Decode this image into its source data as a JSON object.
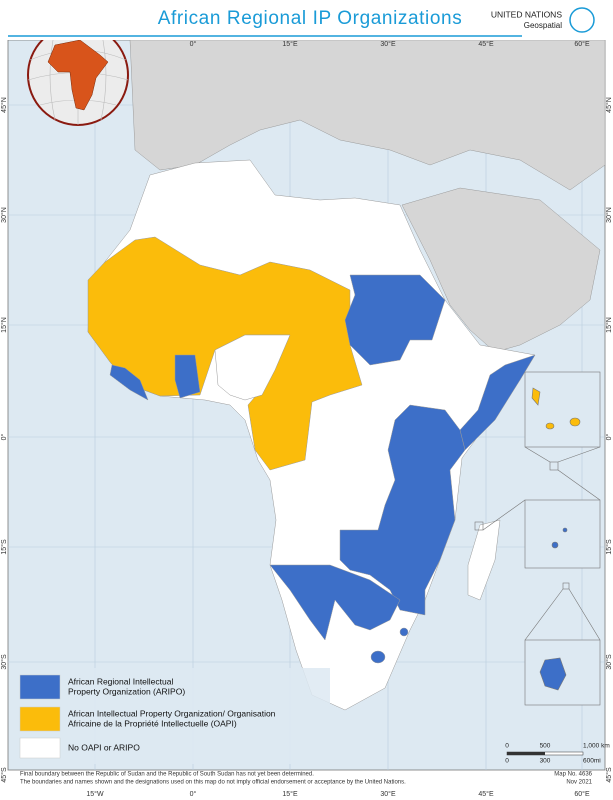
{
  "header": {
    "title": "African Regional IP Organizations",
    "org": "UNITED NATIONS",
    "unit": "Geospatial"
  },
  "graticule": {
    "top": [
      "0°",
      "15°E",
      "30°E",
      "45°E",
      "60°E"
    ],
    "bottom": [
      "15°W",
      "0°",
      "15°E",
      "30°E",
      "45°E",
      "60°E"
    ],
    "left": [
      "45°N",
      "30°N",
      "15°N",
      "0°",
      "15°S",
      "30°S",
      "45°S"
    ],
    "right": [
      "45°N",
      "30°N",
      "15°N",
      "0°",
      "15°S",
      "30°S",
      "45°S"
    ]
  },
  "legend": [
    {
      "lines": [
        "African Regional Intellectual",
        "Property Organization (ARIPO)"
      ],
      "color": "#3d6fc8"
    },
    {
      "lines": [
        "African Intellectual Property Organization/ Organisation",
        "Africaine de la Propriété Intellectuelle (OAPI)"
      ],
      "color": "#fbbc0b"
    },
    {
      "lines": [
        "No OAPI or ARIPO"
      ],
      "color": "#ffffff"
    }
  ],
  "scale": {
    "km": [
      "0",
      "500",
      "1,000 km"
    ],
    "mi": [
      "0",
      "300",
      "600mi"
    ]
  },
  "footnote": [
    "Final boundary between the Republic of Sudan and the Republic of South Sudan has not yet been determined.",
    "The boundaries and names shown and the designations used on this map do not imply official endorsement or acceptance by the United Nations."
  ],
  "map_number": [
    "Map No. 4636",
    "Nov 2021"
  ]
}
